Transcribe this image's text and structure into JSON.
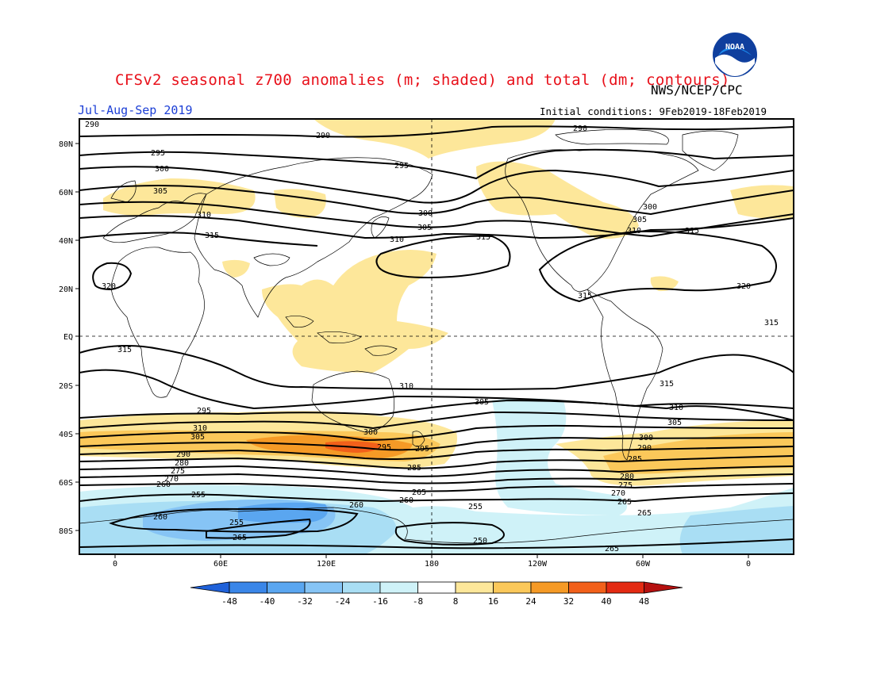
{
  "header": {
    "title": "CFSv2 seasonal z700 anomalies (m; shaded) and total (dm; contours)",
    "org": "NWS/NCEP/CPC",
    "season": "Jul-Aug-Sep 2019",
    "initial_conditions": "Initial conditions: 9Feb2019-18Feb2019",
    "logo_text": "NOAA"
  },
  "map": {
    "projection": "cylindrical equidistant",
    "lat_labels": [
      "80N",
      "60N",
      "40N",
      "20N",
      "EQ",
      "20S",
      "40S",
      "60S",
      "80S"
    ],
    "lon_labels": [
      "0",
      "60E",
      "120E",
      "180",
      "120W",
      "60W",
      "0"
    ],
    "equator_dashed": true,
    "dateline_dashed": true
  },
  "colorbar": {
    "ticks": [
      "-48",
      "-40",
      "-32",
      "-24",
      "-16",
      "-8",
      "8",
      "16",
      "24",
      "32",
      "40",
      "48"
    ],
    "colors": [
      "#1f61d9",
      "#3a86e8",
      "#5aa6f0",
      "#86c4f5",
      "#a9def4",
      "#cff2f8",
      "#ffffff",
      "#fde79a",
      "#fbc85a",
      "#f59a26",
      "#f2601a",
      "#e32a12",
      "#b5100f"
    ]
  },
  "contour_labels": [
    {
      "text": "290"
    },
    {
      "text": "290"
    },
    {
      "text": "290"
    },
    {
      "text": "295"
    },
    {
      "text": "295"
    },
    {
      "text": "295"
    },
    {
      "text": "300"
    },
    {
      "text": "300"
    },
    {
      "text": "300"
    },
    {
      "text": "305"
    },
    {
      "text": "305"
    },
    {
      "text": "305"
    },
    {
      "text": "310"
    },
    {
      "text": "310"
    },
    {
      "text": "310"
    },
    {
      "text": "315"
    },
    {
      "text": "315"
    },
    {
      "text": "315"
    },
    {
      "text": "320"
    },
    {
      "text": "320"
    },
    {
      "text": "315"
    },
    {
      "text": "315"
    },
    {
      "text": "315"
    },
    {
      "text": "315"
    },
    {
      "text": "310"
    },
    {
      "text": "310"
    },
    {
      "text": "310"
    },
    {
      "text": "305"
    },
    {
      "text": "305"
    },
    {
      "text": "305"
    },
    {
      "text": "300"
    },
    {
      "text": "300"
    },
    {
      "text": "295"
    },
    {
      "text": "295"
    },
    {
      "text": "290"
    },
    {
      "text": "290"
    },
    {
      "text": "285"
    },
    {
      "text": "285"
    },
    {
      "text": "280"
    },
    {
      "text": "280"
    },
    {
      "text": "275"
    },
    {
      "text": "275"
    },
    {
      "text": "270"
    },
    {
      "text": "270"
    },
    {
      "text": "265"
    },
    {
      "text": "265"
    },
    {
      "text": "260"
    },
    {
      "text": "260"
    },
    {
      "text": "255"
    },
    {
      "text": "255"
    },
    {
      "text": "255"
    },
    {
      "text": "250"
    },
    {
      "text": "265"
    },
    {
      "text": "260"
    },
    {
      "text": "260"
    },
    {
      "text": "265"
    },
    {
      "text": "265"
    }
  ]
}
